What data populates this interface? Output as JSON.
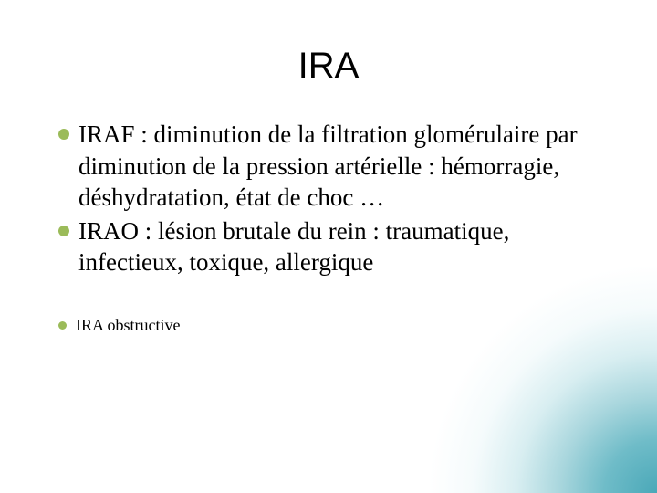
{
  "slide": {
    "title": "IRA",
    "bullet_color": "#9bbb59",
    "title_color": "#000000",
    "text_color": "#000000",
    "background_color": "#ffffff",
    "gradient_accent": "#4aa8b8",
    "items": [
      {
        "size": "large",
        "text": "IRAF : diminution de la filtration glomérulaire par diminution de la pression artérielle : hémorragie, déshydratation, état de choc …"
      },
      {
        "size": "large",
        "text": "IRAO : lésion brutale du rein : traumatique, infectieux, toxique, allergique"
      },
      {
        "size": "small",
        "text": "IRA obstructive"
      }
    ]
  }
}
